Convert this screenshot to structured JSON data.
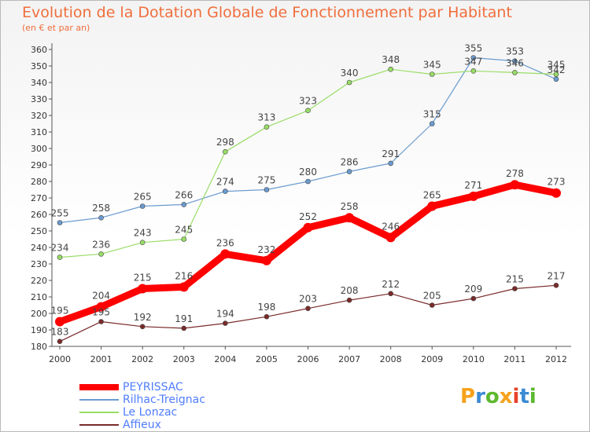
{
  "title": "Evolution de la Dotation Globale de Fonctionnement par Habitant",
  "subtitle": "(en € et par an)",
  "logo": {
    "text": "Proxiti",
    "colors": [
      "#f7a21c",
      "#3a8ad4",
      "#5cb82e",
      "#f7a21c",
      "#e8402b",
      "#3a8ad4",
      "#5cb82e"
    ]
  },
  "chart_data": {
    "type": "line",
    "x": [
      "2000",
      "2001",
      "2002",
      "2003",
      "2004",
      "2005",
      "2006",
      "2007",
      "2008",
      "2009",
      "2010",
      "2011",
      "2012"
    ],
    "ylim": [
      180,
      360
    ],
    "yticks": [
      180,
      190,
      200,
      210,
      220,
      230,
      240,
      250,
      260,
      270,
      280,
      290,
      300,
      310,
      320,
      330,
      340,
      350,
      360
    ],
    "grid": false,
    "legend_position": "bottom-left",
    "series": [
      {
        "name": "PEYRISSAC",
        "color": "#ff0000",
        "width": 9,
        "values": [
          195,
          204,
          215,
          216,
          236,
          232,
          252,
          258,
          246,
          265,
          271,
          278,
          273
        ]
      },
      {
        "name": "Rilhac-Treignac",
        "color": "#6b9bd0",
        "width": 1.2,
        "values": [
          255,
          258,
          265,
          266,
          274,
          275,
          280,
          286,
          291,
          315,
          355,
          353,
          342
        ]
      },
      {
        "name": "Le Lonzac",
        "color": "#99dd66",
        "width": 1.2,
        "values": [
          234,
          236,
          243,
          245,
          298,
          313,
          323,
          340,
          348,
          345,
          347,
          346,
          345
        ]
      },
      {
        "name": "Affieux",
        "color": "#7a2a2a",
        "width": 1.2,
        "values": [
          183,
          195,
          192,
          191,
          194,
          198,
          203,
          208,
          212,
          205,
          209,
          215,
          217
        ]
      }
    ]
  }
}
